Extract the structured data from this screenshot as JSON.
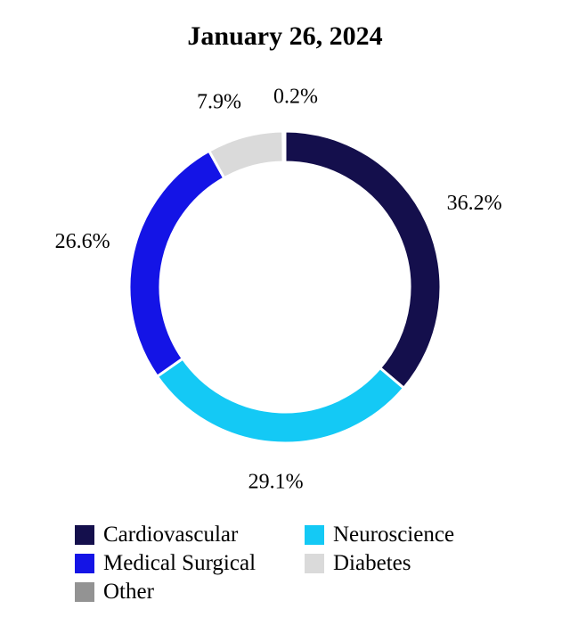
{
  "chart_data": {
    "type": "pie",
    "title": "January 26, 2024",
    "categories": [
      "Cardiovascular",
      "Neuroscience",
      "Medical Surgical",
      "Diabetes",
      "Other"
    ],
    "values": [
      36.2,
      29.1,
      26.6,
      7.9,
      0.2
    ],
    "value_labels": [
      "36.2%",
      "29.1%",
      "26.6%",
      "7.9%",
      "0.2%"
    ],
    "colors": [
      "#140f4c",
      "#14c9f5",
      "#1414e6",
      "#dadada",
      "#939393"
    ],
    "donut": true,
    "legend_position": "bottom"
  },
  "legend": [
    {
      "label": "Cardiovascular",
      "color": "#140f4c"
    },
    {
      "label": "Neuroscience",
      "color": "#14c9f5"
    },
    {
      "label": "Medical Surgical",
      "color": "#1414e6"
    },
    {
      "label": "Diabetes",
      "color": "#dadada"
    },
    {
      "label": "Other",
      "color": "#939393"
    }
  ]
}
